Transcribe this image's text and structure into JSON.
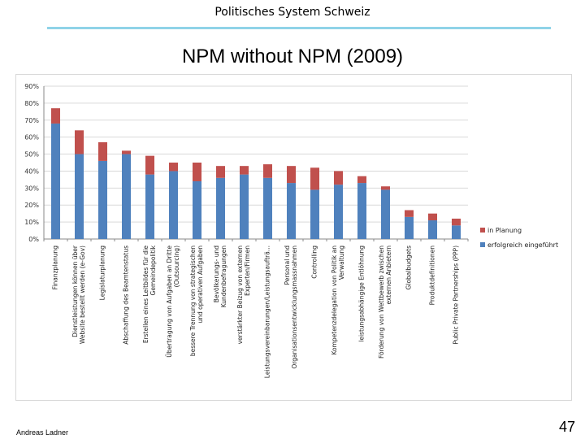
{
  "header": {
    "subject": "Politisches System Schweiz"
  },
  "slide": {
    "title": "NPM without NPM (2009)"
  },
  "footer": {
    "author": "Andreas Ladner",
    "page": "47"
  },
  "chart_data": {
    "type": "bar",
    "stacked": true,
    "y_ticks": [
      "0%",
      "10%",
      "20%",
      "30%",
      "40%",
      "50%",
      "60%",
      "70%",
      "80%",
      "90%"
    ],
    "ylim": [
      0,
      90
    ],
    "grid": true,
    "legend_position": "right",
    "categories": [
      "Finanzplanung",
      "Dienstleistungen können über Website bestellt werden (e-Gov)",
      "Legislaturplanung",
      "Abschaffung des Beamtenstatus",
      "Erstellen eines Leitbildes für die Gemeindepolitik",
      "Übertragung von Aufgaben an Dritte (Outsourcing)",
      "bessere Trennung von strategischen und operativen Aufgaben",
      "Bevölkerungs- und Kundenbefragungen",
      "verstärkter Beizug von externen Experten/Firmen",
      "Leistungsvereinbarungen/Leistungsaufträ...",
      "Personal und Organisationsentwicklungsmassnahmen",
      "Controlling",
      "Kompetenzdelegation von Politik an Verwaltung",
      "leistungsabhängige Entlöhnung",
      "Förderung von Wettbewerb zwischen externen Anbietern",
      "Globalbudgets",
      "Produktdefinitionen",
      "Public Private Partnerships (PPP)"
    ],
    "series": [
      {
        "name": "erfolgreich eingeführt",
        "color": "#4f81bd",
        "values": [
          68,
          50,
          46,
          50,
          38,
          40,
          34,
          36,
          38,
          36,
          33,
          29,
          32,
          33,
          29,
          13,
          11,
          8
        ]
      },
      {
        "name": "in Planung",
        "color": "#c0504d",
        "values": [
          9,
          14,
          11,
          2,
          11,
          5,
          11,
          7,
          5,
          8,
          10,
          13,
          8,
          4,
          2,
          4,
          4,
          4
        ]
      }
    ]
  }
}
